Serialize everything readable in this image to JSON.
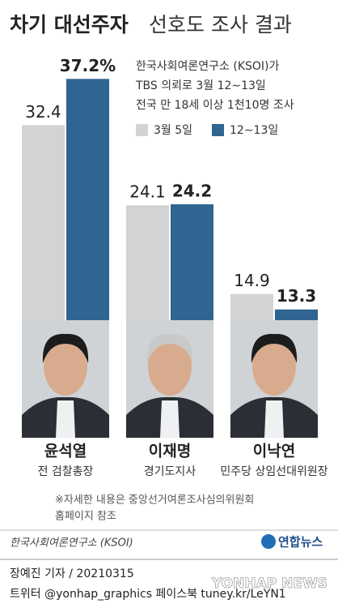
{
  "chart_data": {
    "type": "bar",
    "title": "차기 대선주자",
    "title_suffix": "선호도 조사 결과",
    "notes": [
      "한국사회여론연구소 (KSOI)가",
      "TBS 의뢰로 3월 12∼13일",
      "전국 만 18세 이상 1천10명 조사"
    ],
    "categories": [
      "윤석열",
      "이재명",
      "이낙연"
    ],
    "category_subtitles": [
      "전 검찰총장",
      "경기도지사",
      "민주당 상임선대위원장"
    ],
    "series": [
      {
        "name": "3월 5일",
        "color": "#d3d3d3",
        "values": [
          32.4,
          24.1,
          14.9
        ]
      },
      {
        "name": "12∼13일",
        "color": "#2f6590",
        "values": [
          37.2,
          24.2,
          13.3
        ],
        "value_labels": [
          "37.2%",
          "24.2",
          "13.3"
        ]
      }
    ],
    "footnote": [
      "※자세한 내용은 중앙선거여론조사심의위원회",
      "홈페이지 참조"
    ],
    "source": "한국사회여론연구소 (KSOI)",
    "logo": "연합뉴스",
    "byline": "장예진 기자 / 20210315",
    "social": "트위터 @yonhap_graphics  페이스북 tuney.kr/LeYN1",
    "watermark": "YONHAP NEWS"
  }
}
